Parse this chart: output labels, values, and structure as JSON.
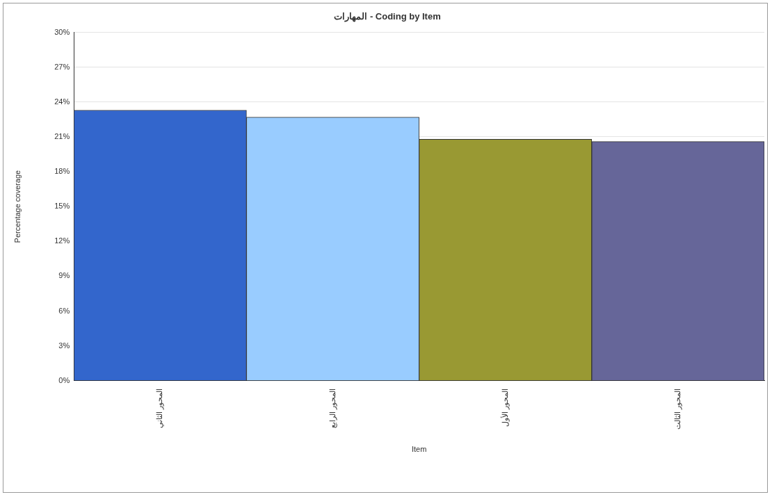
{
  "chart_data": {
    "type": "bar",
    "title": "المهارات - Coding by Item",
    "xlabel": "Item",
    "ylabel": "Percentage coverage",
    "categories": [
      "المحور الثاني",
      "المحور الرابع",
      "المحور الأول",
      "المحور الثالث"
    ],
    "values": [
      23.3,
      22.7,
      20.8,
      20.6
    ],
    "colors": [
      "#3366cc",
      "#99ccff",
      "#999933",
      "#666699"
    ],
    "ylim": [
      0,
      30
    ],
    "yticks": [
      {
        "value": 0,
        "label": "0%"
      },
      {
        "value": 3,
        "label": "3%"
      },
      {
        "value": 6,
        "label": "6%"
      },
      {
        "value": 9,
        "label": "9%"
      },
      {
        "value": 12,
        "label": "12%"
      },
      {
        "value": 15,
        "label": "15%"
      },
      {
        "value": 18,
        "label": "18%"
      },
      {
        "value": 21,
        "label": "21%"
      },
      {
        "value": 24,
        "label": "24%"
      },
      {
        "value": 27,
        "label": "27%"
      },
      {
        "value": 30,
        "label": "30%"
      }
    ],
    "grid": "y",
    "legend": false
  }
}
